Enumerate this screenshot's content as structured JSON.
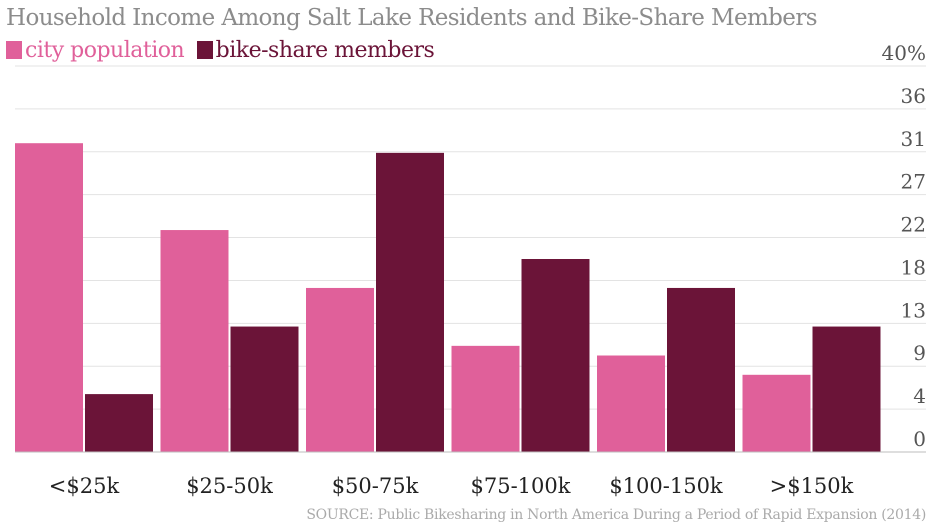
{
  "chart_data": {
    "type": "bar",
    "title": "Household Income Among Salt Lake Residents and Bike-Share Members",
    "categories": [
      "<$25k",
      "$25-50k",
      "$50-75k",
      "$75-100k",
      "$100-150k",
      ">$150k"
    ],
    "series": [
      {
        "name": "city population",
        "color": "#e0609a",
        "values": [
          32,
          23,
          17,
          11,
          10,
          8
        ]
      },
      {
        "name": "bike-share members",
        "color": "#6b1438",
        "values": [
          6,
          13,
          31,
          20,
          17,
          13
        ]
      }
    ],
    "yticks": [
      "0",
      "4",
      "9",
      "13",
      "18",
      "22",
      "27",
      "31",
      "36",
      "40%"
    ],
    "ylim": [
      0,
      40
    ],
    "xlabel": "",
    "ylabel": "",
    "grid": true,
    "legend": "top-left",
    "source": "SOURCE: Public Bikesharing in North America During a Period of Rapid Expansion (2014)"
  }
}
